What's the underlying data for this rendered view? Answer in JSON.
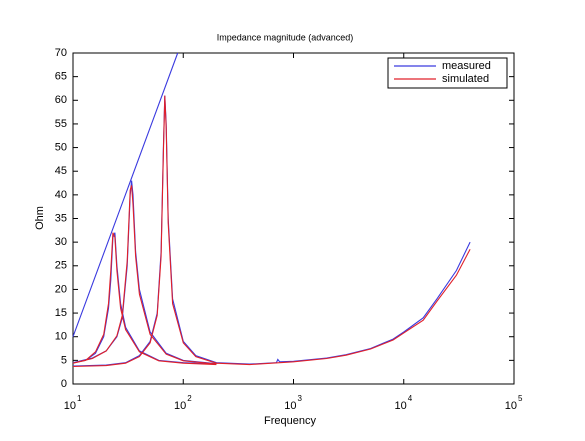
{
  "chart_data": {
    "type": "line",
    "title": "Impedance magnitude (advanced)",
    "xlabel": "Frequency",
    "ylabel": "Ohm",
    "xscale": "log",
    "xlim": [
      10,
      100000
    ],
    "ylim": [
      0,
      70
    ],
    "xticks": [
      {
        "value": 10,
        "label": "10",
        "sup": "1"
      },
      {
        "value": 100,
        "label": "10",
        "sup": "2"
      },
      {
        "value": 1000,
        "label": "10",
        "sup": "3"
      },
      {
        "value": 10000,
        "label": "10",
        "sup": "4"
      },
      {
        "value": 100000,
        "label": "10",
        "sup": "5"
      }
    ],
    "yticks": [
      0,
      5,
      10,
      15,
      20,
      25,
      30,
      35,
      40,
      45,
      50,
      55,
      60,
      65,
      70
    ],
    "legend": "upper right",
    "grid": false,
    "series": [
      {
        "name": "measured",
        "color": "#3a3adf",
        "x": [
          10,
          13,
          16,
          19,
          21,
          22,
          23,
          24,
          25,
          27,
          30,
          40,
          60,
          100,
          200,
          null,
          10,
          15,
          20,
          25,
          28,
          31,
          33,
          34,
          35,
          37,
          40,
          50,
          70,
          100,
          200,
          null,
          10,
          20,
          30,
          40,
          50,
          58,
          63,
          66,
          68,
          70,
          73,
          80,
          100,
          130,
          200,
          400,
          700,
          720,
          750,
          1000,
          2000,
          3000,
          5000,
          8000,
          10000,
          15000,
          20000,
          30000,
          40000,
          null,
          10,
          89
        ],
        "values": [
          4.5,
          5,
          6.5,
          10,
          16,
          22,
          31,
          32,
          25,
          17,
          12,
          7,
          5,
          4.5,
          4.2,
          null,
          4.5,
          5.5,
          7,
          10,
          14,
          25,
          40,
          43,
          40,
          28,
          20,
          11,
          6.5,
          5,
          4.3,
          null,
          3.8,
          4,
          4.5,
          6,
          9,
          15,
          28,
          50,
          61,
          55,
          35,
          18,
          9,
          6,
          4.5,
          4.2,
          4.5,
          5.2,
          4.7,
          4.8,
          5.5,
          6.2,
          7.5,
          9.5,
          11,
          14,
          18,
          24,
          30,
          null,
          10,
          70
        ]
      },
      {
        "name": "simulated",
        "color": "#e0202a",
        "x": [
          10,
          13,
          16,
          19,
          21,
          22,
          23,
          24,
          25,
          27,
          30,
          40,
          60,
          100,
          200,
          null,
          10,
          15,
          20,
          25,
          28,
          31,
          33,
          34,
          35,
          37,
          40,
          50,
          70,
          100,
          200,
          null,
          10,
          20,
          30,
          40,
          50,
          58,
          63,
          66,
          68,
          70,
          73,
          80,
          100,
          130,
          200,
          400,
          1000,
          2000,
          3000,
          5000,
          8000,
          10000,
          15000,
          20000,
          30000,
          40000
        ],
        "values": [
          4.4,
          5,
          6.8,
          10.5,
          17,
          24,
          32,
          31,
          24,
          16,
          11.5,
          6.8,
          4.9,
          4.4,
          4.1,
          null,
          4.4,
          5.4,
          7,
          10.2,
          14.5,
          26,
          41,
          42,
          38,
          27,
          19,
          10.5,
          6.3,
          4.9,
          4.2,
          null,
          3.7,
          3.9,
          4.4,
          5.8,
          8.7,
          14.5,
          27,
          49,
          61,
          54,
          34,
          17,
          8.7,
          5.8,
          4.4,
          4.1,
          4.7,
          5.4,
          6.1,
          7.4,
          9.3,
          10.8,
          13.5,
          17.5,
          23,
          28.5
        ]
      }
    ]
  }
}
